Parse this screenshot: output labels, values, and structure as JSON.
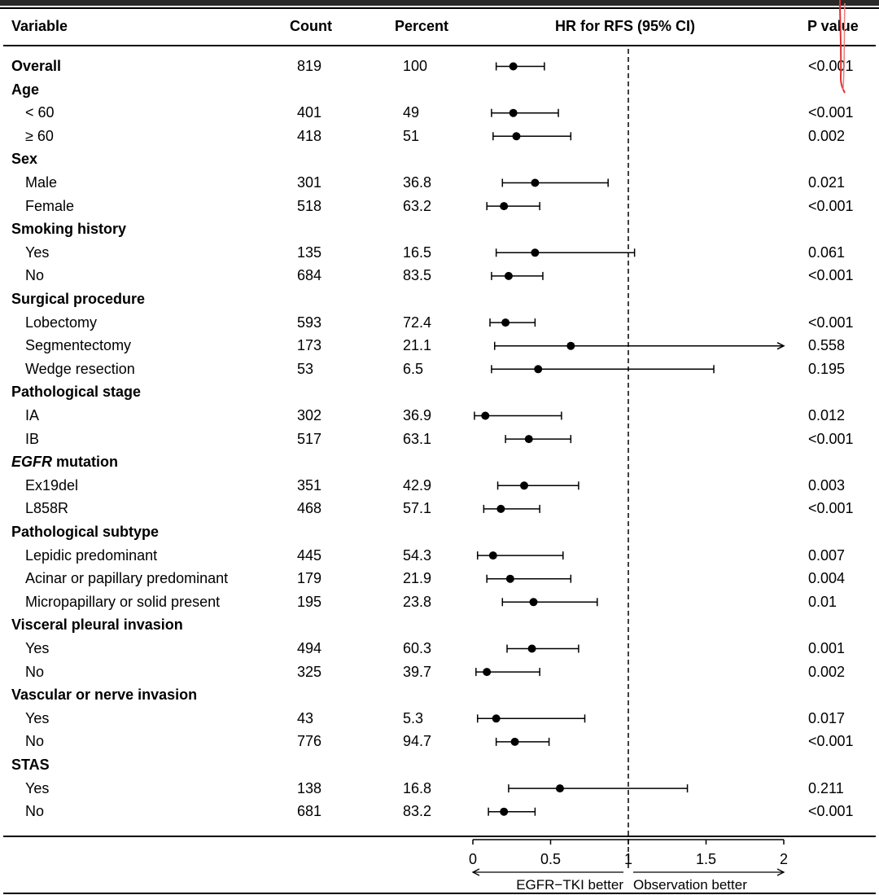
{
  "header": {
    "variable": "Variable",
    "count": "Count",
    "percent": "Percent",
    "hr": "HR for RFS (95% CI)",
    "pvalue": "P value"
  },
  "footer": {
    "left_arrow_label": "EGFR−TKI better",
    "right_arrow_label": "Observation better"
  },
  "colors": {
    "marker": "#000000",
    "annotation": "#e03030"
  },
  "chart_data": {
    "type": "forest",
    "xlim": [
      0,
      2
    ],
    "xticks": [
      "0",
      "0.5",
      "1",
      "1.5",
      "2"
    ],
    "reference_line": 1,
    "rows": [
      {
        "label": "Overall",
        "bold": true,
        "indent": false,
        "count": "819",
        "percent": "100",
        "hr": 0.26,
        "lo": 0.15,
        "hi": 0.46,
        "p": "<0.001"
      },
      {
        "label": "Age",
        "bold": true,
        "header": true
      },
      {
        "label": "< 60",
        "indent": true,
        "count": "401",
        "percent": "49",
        "hr": 0.26,
        "lo": 0.12,
        "hi": 0.55,
        "p": "<0.001"
      },
      {
        "label": "≥ 60",
        "indent": true,
        "count": "418",
        "percent": "51",
        "hr": 0.28,
        "lo": 0.13,
        "hi": 0.63,
        "p": "0.002"
      },
      {
        "label": "Sex",
        "bold": true,
        "header": true
      },
      {
        "label": "Male",
        "indent": true,
        "count": "301",
        "percent": "36.8",
        "hr": 0.4,
        "lo": 0.19,
        "hi": 0.87,
        "p": "0.021"
      },
      {
        "label": "Female",
        "indent": true,
        "count": "518",
        "percent": "63.2",
        "hr": 0.2,
        "lo": 0.09,
        "hi": 0.43,
        "p": "<0.001"
      },
      {
        "label": "Smoking history",
        "bold": true,
        "header": true
      },
      {
        "label": "Yes",
        "indent": true,
        "count": "135",
        "percent": "16.5",
        "hr": 0.4,
        "lo": 0.15,
        "hi": 1.04,
        "p": "0.061"
      },
      {
        "label": "No",
        "indent": true,
        "count": "684",
        "percent": "83.5",
        "hr": 0.23,
        "lo": 0.12,
        "hi": 0.45,
        "p": "<0.001"
      },
      {
        "label": "Surgical procedure",
        "bold": true,
        "header": true
      },
      {
        "label": "Lobectomy",
        "indent": true,
        "count": "593",
        "percent": "72.4",
        "hr": 0.21,
        "lo": 0.11,
        "hi": 0.4,
        "p": "<0.001"
      },
      {
        "label": "Segmentectomy",
        "indent": true,
        "count": "173",
        "percent": "21.1",
        "hr": 0.63,
        "lo": 0.14,
        "hi": 2.0,
        "arrow": true,
        "p": "0.558"
      },
      {
        "label": "Wedge resection",
        "indent": true,
        "count": "53",
        "percent": "6.5",
        "hr": 0.42,
        "lo": 0.12,
        "hi": 1.55,
        "p": "0.195"
      },
      {
        "label": "Pathological stage",
        "bold": true,
        "header": true
      },
      {
        "label": "IA",
        "indent": true,
        "count": "302",
        "percent": "36.9",
        "hr": 0.08,
        "lo": 0.01,
        "hi": 0.57,
        "p": "0.012"
      },
      {
        "label": "IB",
        "indent": true,
        "count": "517",
        "percent": "63.1",
        "hr": 0.36,
        "lo": 0.21,
        "hi": 0.63,
        "p": "<0.001"
      },
      {
        "label": "EGFR",
        "label_suffix": " mutation",
        "italic_prefix": true,
        "bold": true,
        "header": true
      },
      {
        "label": "Ex19del",
        "indent": true,
        "count": "351",
        "percent": "42.9",
        "hr": 0.33,
        "lo": 0.16,
        "hi": 0.68,
        "p": "0.003"
      },
      {
        "label": "L858R",
        "indent": true,
        "count": "468",
        "percent": "57.1",
        "hr": 0.18,
        "lo": 0.07,
        "hi": 0.43,
        "p": "<0.001"
      },
      {
        "label": "Pathological subtype",
        "bold": true,
        "header": true
      },
      {
        "label": "Lepidic predominant",
        "indent": true,
        "count": "445",
        "percent": "54.3",
        "hr": 0.13,
        "lo": 0.03,
        "hi": 0.58,
        "p": "0.007"
      },
      {
        "label": "Acinar or papillary predominant",
        "indent": true,
        "count": "179",
        "percent": "21.9",
        "hr": 0.24,
        "lo": 0.09,
        "hi": 0.63,
        "p": "0.004"
      },
      {
        "label": "Micropapillary or solid present",
        "indent": true,
        "count": "195",
        "percent": "23.8",
        "hr": 0.39,
        "lo": 0.19,
        "hi": 0.8,
        "p": "0.01"
      },
      {
        "label": "Visceral pleural invasion",
        "bold": true,
        "header": true
      },
      {
        "label": "Yes",
        "indent": true,
        "count": "494",
        "percent": "60.3",
        "hr": 0.38,
        "lo": 0.22,
        "hi": 0.68,
        "p": "0.001"
      },
      {
        "label": "No",
        "indent": true,
        "count": "325",
        "percent": "39.7",
        "hr": 0.09,
        "lo": 0.02,
        "hi": 0.43,
        "p": "0.002"
      },
      {
        "label": "Vascular or nerve invasion",
        "bold": true,
        "header": true
      },
      {
        "label": "Yes",
        "indent": true,
        "count": "43",
        "percent": "5.3",
        "hr": 0.15,
        "lo": 0.03,
        "hi": 0.72,
        "p": "0.017"
      },
      {
        "label": "No",
        "indent": true,
        "count": "776",
        "percent": "94.7",
        "hr": 0.27,
        "lo": 0.15,
        "hi": 0.49,
        "p": "<0.001"
      },
      {
        "label": "STAS",
        "bold": true,
        "header": true
      },
      {
        "label": "Yes",
        "indent": true,
        "count": "138",
        "percent": "16.8",
        "hr": 0.56,
        "lo": 0.23,
        "hi": 1.38,
        "p": "0.211"
      },
      {
        "label": "No",
        "indent": true,
        "count": "681",
        "percent": "83.2",
        "hr": 0.2,
        "lo": 0.1,
        "hi": 0.4,
        "p": "<0.001"
      }
    ]
  }
}
